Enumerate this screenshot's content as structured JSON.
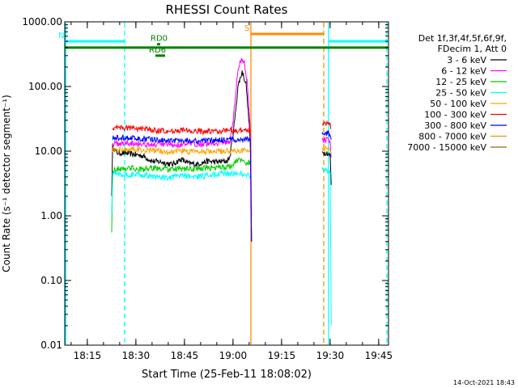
{
  "chart_data": {
    "type": "line",
    "title": "RHESSI Count Rates",
    "xlabel": "Start Time (25-Feb-11 18:08:02)",
    "ylabel": "Count Rate (s⁻¹ detector segment⁻¹)",
    "yscale": "log",
    "ylim": [
      0.01,
      1000
    ],
    "xlim_minutes": [
      0,
      100
    ],
    "x_ticks": [
      {
        "label": "18:15",
        "minute": 6.97
      },
      {
        "label": "18:30",
        "minute": 21.97
      },
      {
        "label": "18:45",
        "minute": 36.97
      },
      {
        "label": "19:00",
        "minute": 51.97
      },
      {
        "label": "19:15",
        "minute": 66.97
      },
      {
        "label": "19:30",
        "minute": 81.97
      },
      {
        "label": "19:45",
        "minute": 96.97
      }
    ],
    "y_ticks": [
      {
        "label": "0.01",
        "value": 0.01
      },
      {
        "label": "0.10",
        "value": 0.1
      },
      {
        "label": "1.00",
        "value": 1
      },
      {
        "label": "10.00",
        "value": 10
      },
      {
        "label": "100.00",
        "value": 100
      },
      {
        "label": "1000.00",
        "value": 1000
      }
    ],
    "legend_header": [
      "Det 1f,3f,4f,5f,6f,9f,",
      "FDecim 1, Att 0"
    ],
    "legend_placement": "right",
    "series": [
      {
        "name": "3 - 6 keV",
        "color": "#000000",
        "points": [
          [
            14.5,
            2.2
          ],
          [
            14.8,
            12
          ],
          [
            16,
            9.5
          ],
          [
            20,
            9.2
          ],
          [
            24,
            8.5
          ],
          [
            27,
            7
          ],
          [
            30,
            6.8
          ],
          [
            33,
            6.2
          ],
          [
            36,
            7.5
          ],
          [
            38,
            6.5
          ],
          [
            41,
            6.3
          ],
          [
            44,
            7
          ],
          [
            47,
            6.8
          ],
          [
            50,
            7
          ],
          [
            51,
            8
          ],
          [
            52.5,
            30
          ],
          [
            53.5,
            100
          ],
          [
            54.8,
            170
          ],
          [
            56,
            110
          ],
          [
            57,
            25
          ],
          [
            57.4,
            10
          ],
          [
            57.7,
            0.4
          ],
          [
            null,
            null
          ],
          [
            79.5,
            9.5
          ],
          [
            81,
            9.5
          ],
          [
            82,
            8.5
          ],
          [
            82.3,
            3
          ]
        ]
      },
      {
        "name": "6 - 12 keV",
        "color": "#ff00ff",
        "points": [
          [
            14.6,
            13
          ],
          [
            16,
            13
          ],
          [
            20,
            13.5
          ],
          [
            24,
            13
          ],
          [
            27,
            12.5
          ],
          [
            30,
            12.5
          ],
          [
            33,
            12.5
          ],
          [
            36,
            12.5
          ],
          [
            40,
            13
          ],
          [
            44,
            13
          ],
          [
            48,
            13.5
          ],
          [
            51,
            14
          ],
          [
            52,
            30
          ],
          [
            53.5,
            180
          ],
          [
            54.6,
            280
          ],
          [
            55.5,
            230
          ],
          [
            56.3,
            120
          ],
          [
            57,
            40
          ],
          [
            57.4,
            15
          ],
          [
            57.7,
            1
          ],
          [
            null,
            null
          ],
          [
            79.5,
            15
          ],
          [
            81,
            15
          ],
          [
            82,
            14
          ],
          [
            82.3,
            8
          ]
        ]
      },
      {
        "name": "12 - 25 keV",
        "color": "#00cc00",
        "points": [
          [
            14.5,
            0.6
          ],
          [
            14.8,
            5
          ],
          [
            16,
            5.3
          ],
          [
            20,
            5.5
          ],
          [
            24,
            5.2
          ],
          [
            28,
            5.5
          ],
          [
            32,
            5.2
          ],
          [
            36,
            5.3
          ],
          [
            40,
            5.3
          ],
          [
            44,
            5.5
          ],
          [
            48,
            5.6
          ],
          [
            51,
            5.8
          ],
          [
            53,
            7
          ],
          [
            55,
            7.5
          ],
          [
            56,
            6.5
          ],
          [
            57,
            6.8
          ],
          [
            57.4,
            6
          ]
        ]
      },
      {
        "name": "25 - 50 keV",
        "color": "#00ffff",
        "points": [
          [
            14.5,
            1.2
          ],
          [
            14.8,
            4.5
          ],
          [
            16,
            4.5
          ],
          [
            20,
            4.3
          ],
          [
            24,
            4.3
          ],
          [
            28,
            4
          ],
          [
            32,
            3.8
          ],
          [
            36,
            4.2
          ],
          [
            40,
            4
          ],
          [
            44,
            4.2
          ],
          [
            48,
            4.5
          ],
          [
            51,
            4.5
          ],
          [
            55,
            4.5
          ],
          [
            57,
            4.3
          ],
          [
            57.4,
            3.5
          ],
          [
            null,
            null
          ],
          [
            79.5,
            5.5
          ],
          [
            81,
            5
          ],
          [
            82,
            4.8
          ],
          [
            82.3,
            0.02
          ]
        ]
      },
      {
        "name": "50 - 100 keV",
        "color": "#ffa500",
        "points": [
          [
            14.8,
            10.5
          ],
          [
            16,
            10.5
          ],
          [
            20,
            10.8
          ],
          [
            24,
            10.5
          ],
          [
            28,
            10.2
          ],
          [
            32,
            9.8
          ],
          [
            36,
            10
          ],
          [
            40,
            9.8
          ],
          [
            44,
            9.8
          ],
          [
            48,
            10
          ],
          [
            51,
            10.2
          ],
          [
            55,
            10.2
          ],
          [
            57.4,
            10.2
          ],
          [
            null,
            null
          ],
          [
            79.5,
            11
          ],
          [
            81,
            11
          ],
          [
            82,
            10.5
          ],
          [
            82.3,
            9
          ]
        ]
      },
      {
        "name": "100 - 300 keV",
        "color": "#ff0000",
        "points": [
          [
            14.8,
            23
          ],
          [
            16,
            23
          ],
          [
            20,
            23
          ],
          [
            24,
            22
          ],
          [
            28,
            21
          ],
          [
            32,
            20
          ],
          [
            36,
            21
          ],
          [
            40,
            20.5
          ],
          [
            44,
            20
          ],
          [
            48,
            20.5
          ],
          [
            51,
            21
          ],
          [
            55,
            21
          ],
          [
            57.4,
            21
          ],
          [
            null,
            null
          ],
          [
            79.5,
            27
          ],
          [
            81,
            27
          ],
          [
            82,
            26
          ],
          [
            82.3,
            22
          ]
        ]
      },
      {
        "name": "300 - 800 keV",
        "color": "#0000ff",
        "points": [
          [
            14.8,
            16
          ],
          [
            16,
            16
          ],
          [
            20,
            16
          ],
          [
            24,
            15.5
          ],
          [
            28,
            15
          ],
          [
            32,
            14.5
          ],
          [
            36,
            15
          ],
          [
            40,
            14.5
          ],
          [
            44,
            14.5
          ],
          [
            48,
            15
          ],
          [
            51,
            15
          ],
          [
            55,
            15.2
          ],
          [
            57.3,
            15.5
          ],
          [
            57.5,
            2
          ],
          [
            57.7,
            0.4
          ],
          [
            null,
            null
          ],
          [
            79.5,
            19
          ],
          [
            81,
            19
          ],
          [
            82,
            18
          ],
          [
            82.3,
            15
          ]
        ]
      },
      {
        "name": "800 - 7000 keV",
        "color": "#ff8c00",
        "points": []
      },
      {
        "name": "7000 - 15000 keV",
        "color": "#996600",
        "points": []
      }
    ],
    "annotations": [
      {
        "label": "N",
        "color": "#00ffff",
        "kind": "bar",
        "level": 500,
        "x_start": 0,
        "x_end": 18.5
      },
      {
        "label": "",
        "color": "#00ffff",
        "kind": "bar",
        "level": 500,
        "x_start": 81.5,
        "x_end": 100
      },
      {
        "label": "",
        "color": "#008000",
        "kind": "bar",
        "level": 400,
        "x_start": 0,
        "x_end": 100
      },
      {
        "label": "RD0",
        "color": "#008000",
        "kind": "bar",
        "level": 450,
        "x_start": 28.5,
        "x_end": 29.5
      },
      {
        "label": "RD6",
        "color": "#008000",
        "kind": "bar",
        "level": 300,
        "x_start": 28,
        "x_end": 31
      },
      {
        "label": "S",
        "color": "#ff8c00",
        "kind": "bar",
        "level": 650,
        "x_start": 57.5,
        "x_end": 80
      }
    ],
    "vertical_lines": [
      {
        "minute": 0.3,
        "color": "#00ffff",
        "style": "solid"
      },
      {
        "minute": 18.5,
        "color": "#00ffff",
        "style": "dashed"
      },
      {
        "minute": 57.5,
        "color": "#ff8c00",
        "style": "solid"
      },
      {
        "minute": 80.0,
        "color": "#ff8c00",
        "style": "dashed"
      },
      {
        "minute": 81.5,
        "color": "#00ffff",
        "style": "solid"
      },
      {
        "minute": 99.5,
        "color": "#00ffff",
        "style": "dashed"
      }
    ],
    "grid": false
  },
  "footer": {
    "timestamp": "14-Oct-2021 18:43"
  }
}
